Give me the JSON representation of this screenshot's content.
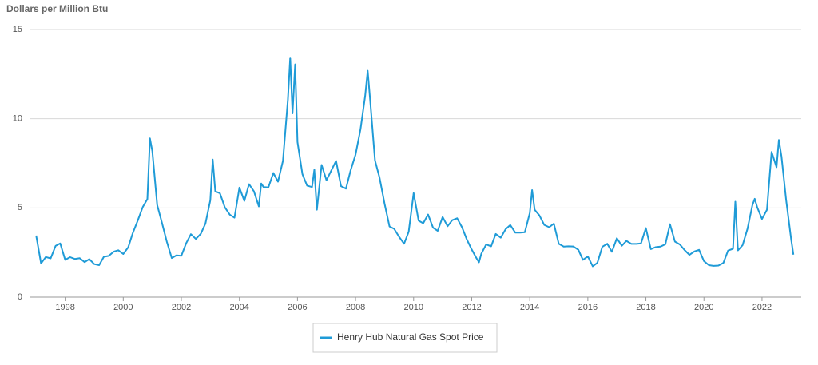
{
  "chart_data": {
    "type": "line",
    "y_label": "Dollars per Million Btu",
    "x": [
      1997,
      1997.17,
      1997.33,
      1997.5,
      1997.67,
      1997.83,
      1998,
      1998.17,
      1998.33,
      1998.5,
      1998.67,
      1998.83,
      1999,
      1999.17,
      1999.33,
      1999.5,
      1999.67,
      1999.83,
      2000,
      2000.17,
      2000.33,
      2000.5,
      2000.67,
      2000.83,
      2000.92,
      2001,
      2001.17,
      2001.33,
      2001.5,
      2001.67,
      2001.83,
      2002,
      2002.17,
      2002.33,
      2002.5,
      2002.67,
      2002.83,
      2003,
      2003.08,
      2003.17,
      2003.33,
      2003.5,
      2003.67,
      2003.83,
      2004,
      2004.17,
      2004.33,
      2004.5,
      2004.67,
      2004.75,
      2004.83,
      2005,
      2005.17,
      2005.33,
      2005.5,
      2005.67,
      2005.75,
      2005.83,
      2005.92,
      2006,
      2006.17,
      2006.33,
      2006.5,
      2006.58,
      2006.67,
      2006.83,
      2007,
      2007.17,
      2007.33,
      2007.5,
      2007.67,
      2007.83,
      2008,
      2008.17,
      2008.33,
      2008.42,
      2008.5,
      2008.67,
      2008.83,
      2009,
      2009.17,
      2009.33,
      2009.5,
      2009.67,
      2009.83,
      2010,
      2010.17,
      2010.33,
      2010.5,
      2010.67,
      2010.83,
      2011,
      2011.17,
      2011.33,
      2011.5,
      2011.67,
      2011.83,
      2012,
      2012.17,
      2012.25,
      2012.33,
      2012.5,
      2012.67,
      2012.83,
      2013,
      2013.17,
      2013.33,
      2013.5,
      2013.67,
      2013.83,
      2014,
      2014.08,
      2014.17,
      2014.33,
      2014.5,
      2014.67,
      2014.83,
      2015,
      2015.17,
      2015.33,
      2015.5,
      2015.67,
      2015.83,
      2016,
      2016.17,
      2016.33,
      2016.5,
      2016.67,
      2016.83,
      2017,
      2017.17,
      2017.33,
      2017.5,
      2017.67,
      2017.83,
      2018,
      2018.17,
      2018.33,
      2018.5,
      2018.67,
      2018.83,
      2019,
      2019.17,
      2019.33,
      2019.5,
      2019.67,
      2019.83,
      2020,
      2020.17,
      2020.33,
      2020.5,
      2020.67,
      2020.83,
      2021,
      2021.08,
      2021.17,
      2021.33,
      2021.5,
      2021.67,
      2021.75,
      2021.83,
      2022,
      2022.17,
      2022.33,
      2022.5,
      2022.58,
      2022.67,
      2022.83,
      2023,
      2023.08
    ],
    "series": [
      {
        "name": "Henry Hub Natural Gas Spot Price",
        "color": "#1f9bd7",
        "values": [
          3.45,
          1.89,
          2.25,
          2.17,
          2.87,
          3.01,
          2.09,
          2.24,
          2.14,
          2.18,
          1.96,
          2.13,
          1.85,
          1.79,
          2.26,
          2.31,
          2.55,
          2.63,
          2.42,
          2.79,
          3.6,
          4.3,
          5.05,
          5.5,
          8.9,
          8.17,
          5.16,
          4.19,
          3.11,
          2.19,
          2.34,
          2.32,
          3.03,
          3.53,
          3.26,
          3.55,
          4.13,
          5.43,
          7.71,
          5.93,
          5.82,
          5.03,
          4.62,
          4.45,
          6.14,
          5.39,
          6.33,
          5.93,
          5.08,
          6.37,
          6.17,
          6.15,
          6.96,
          6.47,
          7.64,
          11.07,
          13.42,
          10.3,
          13.05,
          8.69,
          6.89,
          6.25,
          6.17,
          7.14,
          4.9,
          7.41,
          6.55,
          7.11,
          7.64,
          6.22,
          6.08,
          7.1,
          7.99,
          9.41,
          11.27,
          12.69,
          11.09,
          7.67,
          6.68,
          5.24,
          3.96,
          3.83,
          3.38,
          2.99,
          3.66,
          5.83,
          4.29,
          4.14,
          4.63,
          3.89,
          3.71,
          4.49,
          3.97,
          4.31,
          4.42,
          3.9,
          3.24,
          2.67,
          2.17,
          1.95,
          2.43,
          2.95,
          2.85,
          3.54,
          3.33,
          3.81,
          4.04,
          3.62,
          3.62,
          3.64,
          4.71,
          6.0,
          4.9,
          4.58,
          4.05,
          3.92,
          4.12,
          2.99,
          2.83,
          2.85,
          2.84,
          2.66,
          2.09,
          2.28,
          1.73,
          1.92,
          2.82,
          2.99,
          2.54,
          3.3,
          2.88,
          3.15,
          2.98,
          2.98,
          3.01,
          3.87,
          2.69,
          2.8,
          2.83,
          2.96,
          4.09,
          3.11,
          2.95,
          2.64,
          2.37,
          2.56,
          2.65,
          2.02,
          1.79,
          1.75,
          1.77,
          1.92,
          2.61,
          2.71,
          5.35,
          2.62,
          2.91,
          3.84,
          5.16,
          5.51,
          5.05,
          4.38,
          4.9,
          8.14,
          7.28,
          8.81,
          7.88,
          5.45,
          3.27,
          2.38
        ]
      }
    ],
    "xlim": [
      1996.8,
      2023.35
    ],
    "ylim": [
      0,
      15
    ],
    "xticks": [
      1998,
      2000,
      2002,
      2004,
      2006,
      2008,
      2010,
      2012,
      2014,
      2016,
      2018,
      2020,
      2022
    ],
    "yticks": [
      0,
      5,
      10,
      15
    ],
    "grid": true,
    "legend": "bottom"
  }
}
